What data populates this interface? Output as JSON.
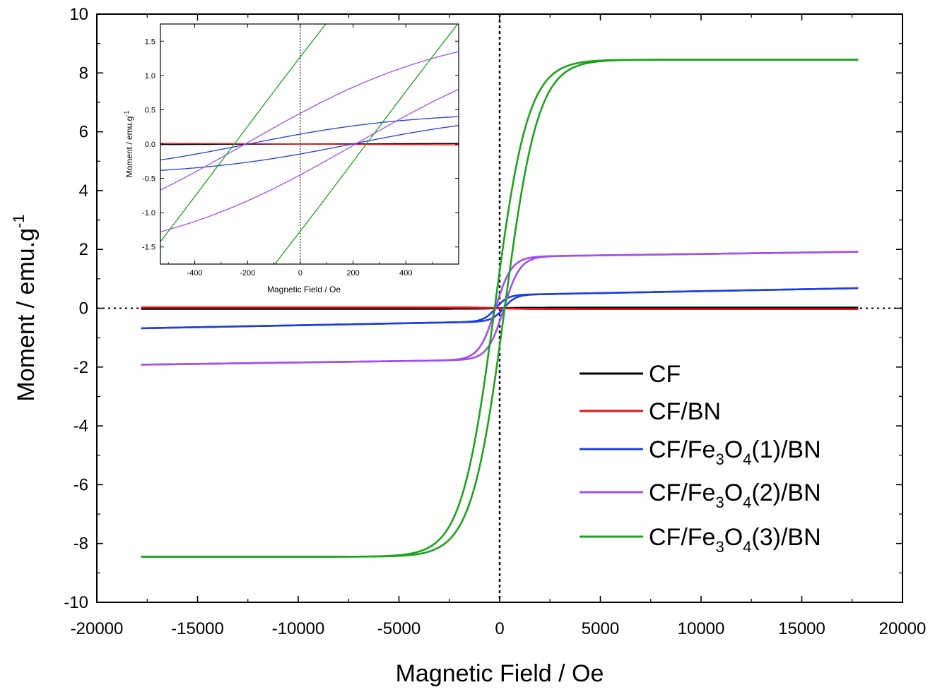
{
  "chart_data": [
    {
      "id": "main",
      "type": "line",
      "title": "",
      "xlabel": "Magnetic Field / Oe",
      "ylabel": "Moment / emu.g",
      "ylabel_sup": "-1",
      "xlim": [
        -20000,
        20000
      ],
      "ylim": [
        -10,
        10
      ],
      "xticks": [
        -20000,
        -15000,
        -10000,
        -5000,
        0,
        5000,
        10000,
        15000,
        20000
      ],
      "yticks": [
        -10,
        -8,
        -6,
        -4,
        -2,
        0,
        2,
        4,
        6,
        8,
        10
      ],
      "reference_lines": {
        "x": 0,
        "y": 0
      },
      "legend_position": "bottom-right",
      "series": [
        {
          "name": "CF",
          "legend_parts": [
            {
              "t": "CF"
            }
          ],
          "color": "#000000",
          "Ms": 0.02,
          "Hc": 20,
          "a": 1500,
          "x_min": -17800,
          "x_max": 17800
        },
        {
          "name": "CF/BN",
          "legend_parts": [
            {
              "t": "CF/BN"
            }
          ],
          "color": "#e8141b",
          "Ms": -0.03,
          "Hc": 20,
          "a": 1500,
          "x_min": -17800,
          "x_max": 17800
        },
        {
          "name": "CF/Fe3O4(1)/BN",
          "legend_parts": [
            {
              "t": "CF/Fe"
            },
            {
              "t": "3",
              "s": "sub"
            },
            {
              "t": "O"
            },
            {
              "t": "4",
              "s": "sub"
            },
            {
              "t": "(1)/BN"
            }
          ],
          "color": "#1e3fe0",
          "Ms": 0.45,
          "Hc": 200,
          "a": 600,
          "chi": 1.3e-05,
          "x_min": -17800,
          "x_max": 17800
        },
        {
          "name": "CF/Fe3O4(2)/BN",
          "legend_parts": [
            {
              "t": "CF/Fe"
            },
            {
              "t": "3",
              "s": "sub"
            },
            {
              "t": "O"
            },
            {
              "t": "4",
              "s": "sub"
            },
            {
              "t": "(2)/BN"
            }
          ],
          "color": "#a24ef0",
          "Ms": 1.75,
          "Hc": 210,
          "a": 800,
          "chi": 9.5e-06,
          "x_min": -17800,
          "x_max": 17800
        },
        {
          "name": "CF/Fe3O4(3)/BN",
          "legend_parts": [
            {
              "t": "CF/Fe"
            },
            {
              "t": "3",
              "s": "sub"
            },
            {
              "t": "O"
            },
            {
              "t": "4",
              "s": "sub"
            },
            {
              "t": "(3)/BN"
            }
          ],
          "color": "#1da31d",
          "Ms": 8.45,
          "Hc": 250,
          "a": 1650,
          "x_min": -17800,
          "x_max": 17800
        }
      ]
    },
    {
      "id": "inset",
      "type": "line",
      "xlabel": "Magnetic Field / Oe",
      "ylabel": "Moment / emu.g",
      "ylabel_sup": "-1",
      "xlim": [
        -530,
        600
      ],
      "ylim": [
        -1.75,
        1.75
      ],
      "xticks": [
        -400,
        -200,
        0,
        200,
        400
      ],
      "yticks": [
        -1.5,
        -1.0,
        -0.5,
        0.0,
        0.5,
        1.0,
        1.5
      ],
      "yticks_format": 1,
      "reference_lines": {
        "x": 0
      }
    }
  ]
}
